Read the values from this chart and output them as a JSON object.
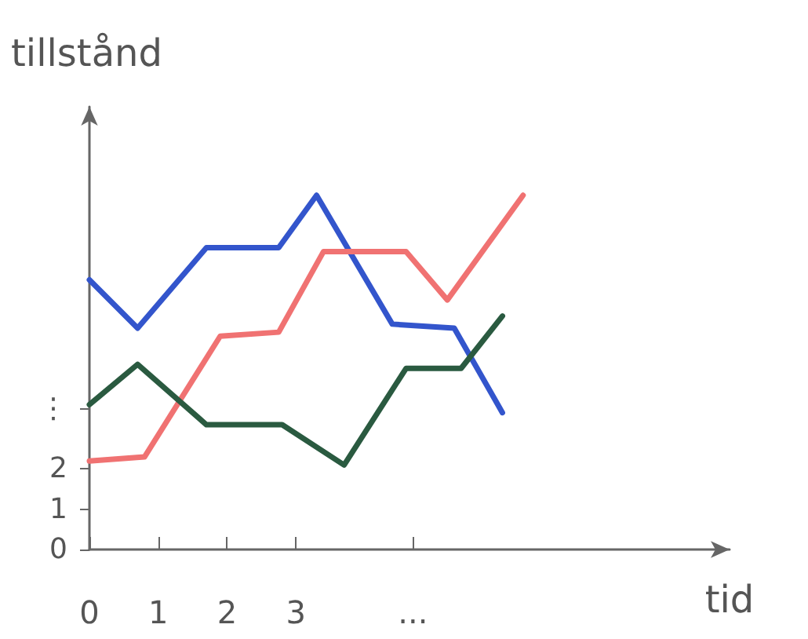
{
  "chart_data": {
    "type": "line",
    "xlabel": "tid",
    "ylabel": "tillstånd",
    "xlim": [
      0,
      9.3
    ],
    "ylim": [
      0,
      11
    ],
    "xticks": [
      0,
      1,
      2,
      3,
      {
        "value": 4.7,
        "label": "..."
      }
    ],
    "yticks": [
      0,
      1,
      2,
      {
        "value": 3.5,
        "label": "⋮"
      }
    ],
    "grid": false,
    "marker": "none",
    "line_style": "solid",
    "series": [
      {
        "color": "#3355cc",
        "x": [
          0,
          0.7,
          1.7,
          2.75,
          3.3,
          4.4,
          5.3,
          6.0
        ],
        "values": [
          6.7,
          5.5,
          7.5,
          7.5,
          8.8,
          5.6,
          5.5,
          3.4
        ]
      },
      {
        "color": "#f07272",
        "x": [
          0,
          0.8,
          1.9,
          2.75,
          3.4,
          4.6,
          5.2,
          6.3
        ],
        "values": [
          2.2,
          2.3,
          5.3,
          5.4,
          7.4,
          7.4,
          6.2,
          8.8
        ]
      },
      {
        "color": "#2a5a40",
        "x": [
          0,
          0.7,
          1.7,
          2.8,
          3.7,
          4.6,
          5.4,
          6.0
        ],
        "values": [
          3.6,
          4.6,
          3.1,
          3.1,
          2.1,
          4.5,
          4.5,
          5.8
        ]
      }
    ]
  }
}
